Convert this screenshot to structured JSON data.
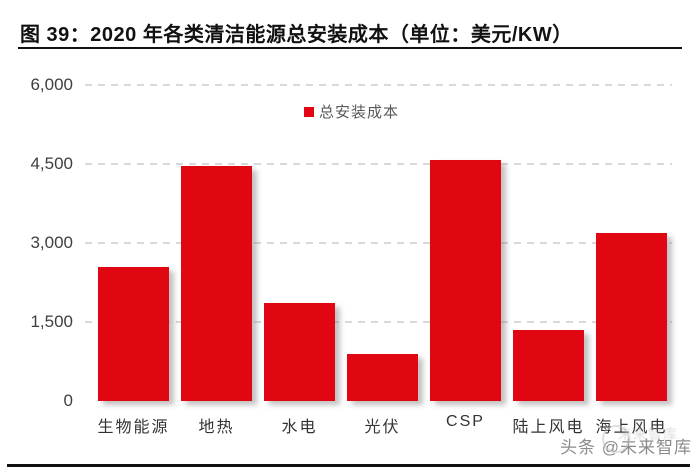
{
  "figure": {
    "title": "图 39：2020 年各类清洁能源总安装成本（单位：美元/KW）"
  },
  "legend": {
    "label": "总安装成本"
  },
  "watermark": {
    "text": "头条 @未来智库",
    "ghost_text": "未来智库"
  },
  "colors": {
    "bar": "#e00712",
    "grid": "#d9d9d9",
    "axis_text": "#3f3f3f",
    "legend_text": "#595959",
    "title_text": "#111111",
    "watermark_text": "#8c8c8c"
  },
  "chart_data": {
    "type": "bar",
    "title": "2020 年各类清洁能源总安装成本",
    "unit": "美元/KW",
    "categories": [
      "生物能源",
      "地热",
      "水电",
      "光伏",
      "CSP",
      "陆上风电",
      "海上风电"
    ],
    "series": [
      {
        "name": "总安装成本",
        "values": [
          2543,
          4468,
          1870,
          883,
          4581,
          1355,
          3185
        ]
      }
    ],
    "ylim": [
      0,
      6000
    ],
    "yticks": [
      0,
      1500,
      3000,
      4500,
      6000
    ],
    "ytick_labels": [
      "0",
      "1,500",
      "3,000",
      "4,500",
      "6,000"
    ],
    "grid": "horizontal-dashed",
    "legend_position": "top-center"
  }
}
